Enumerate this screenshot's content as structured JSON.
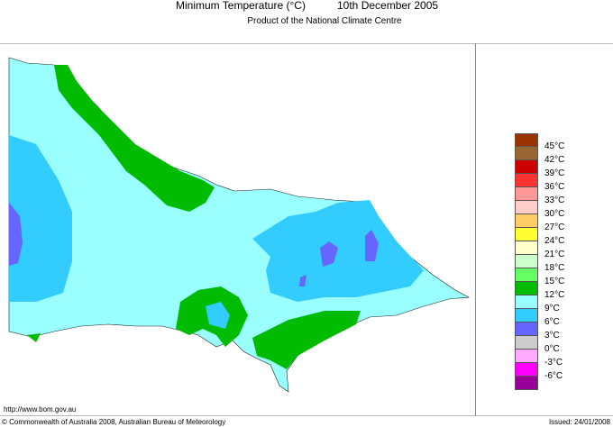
{
  "header": {
    "title": "Minimum Temperature (°C)",
    "date": "10th December 2005",
    "subtitle": "Product of the National Climate Centre"
  },
  "footer": {
    "url": "http://www.bom.gov.au",
    "copyright": "© Commonwealth of Australia 2008, Australian Bureau of Meteorology",
    "issued": "Issued: 24/01/2008"
  },
  "legend": {
    "colors": [
      "#993300",
      "#996633",
      "#cc0000",
      "#ff3333",
      "#ff9999",
      "#ffcccc",
      "#ffcc66",
      "#ffff33",
      "#ffffcc",
      "#ccffcc",
      "#66ff66",
      "#00bb00",
      "#99ffff",
      "#33ccff",
      "#6666ff",
      "#cccccc",
      "#ffaaff",
      "#ff00ff",
      "#990099"
    ],
    "labels": [
      "45°C",
      "42°C",
      "39°C",
      "36°C",
      "33°C",
      "30°C",
      "27°C",
      "24°C",
      "21°C",
      "18°C",
      "15°C",
      "12°C",
      "9°C",
      "6°C",
      "3°C",
      "0°C",
      "-3°C",
      "-6°C"
    ]
  },
  "map_colors": {
    "c12_15": "#00bb00",
    "c9_12": "#99ffff",
    "c6_9": "#33ccff",
    "c3_6": "#6666ff"
  }
}
